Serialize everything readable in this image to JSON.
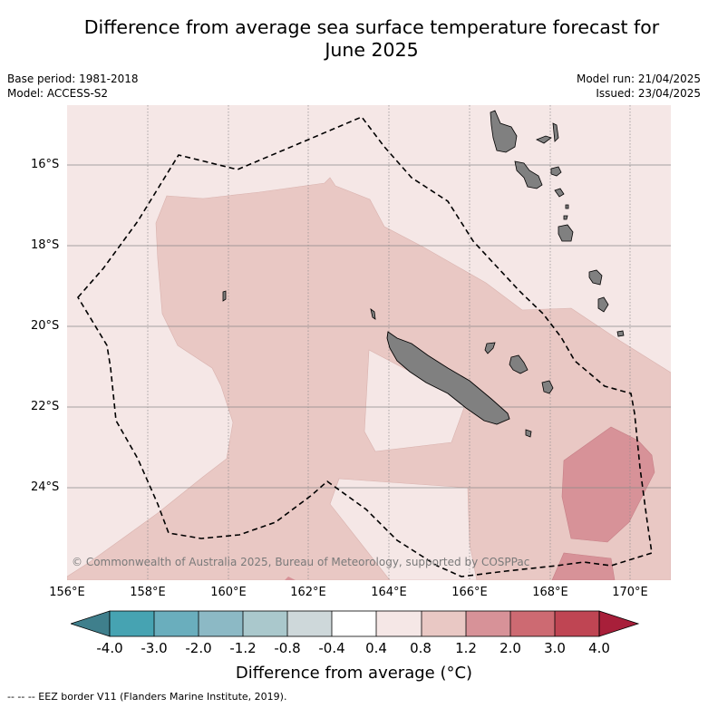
{
  "title": "Difference from average sea surface temperature forecast for June 2025",
  "title_line1": "Difference from average sea surface temperature forecast for",
  "title_line2": "June 2025",
  "meta": {
    "base_period": "Base period: 1981-2018",
    "model": "Model: ACCESS-S2",
    "model_run": "Model run: 21/04/2025",
    "issued": "Issued: 23/04/2025"
  },
  "copyright": "© Commonwealth of Australia 2025, Bureau of Meteorology, supported by COSPPac",
  "axes": {
    "x_ticks": [
      "156°E",
      "158°E",
      "160°E",
      "162°E",
      "164°E",
      "166°E",
      "168°E",
      "170°E"
    ],
    "y_ticks": [
      "16°S",
      "18°S",
      "20°S",
      "22°S",
      "24°S"
    ],
    "lon_range": [
      156,
      171
    ],
    "lat_range": [
      -14.8,
      -26.6
    ],
    "grid": true
  },
  "colorbar": {
    "title": "Difference from average (°C)",
    "labels": [
      "-4.0",
      "-3.0",
      "-2.0",
      "-1.2",
      "-0.8",
      "-0.4",
      "0.4",
      "0.8",
      "1.2",
      "2.0",
      "3.0",
      "4.0"
    ],
    "colors": [
      "#3f7f8c",
      "#46a3b2",
      "#6aaebd",
      "#8cb9c5",
      "#aac8cc",
      "#ced8da",
      "#ffffff",
      "#f5e7e6",
      "#e9c8c4",
      "#d79298",
      "#cd6a72",
      "#bf4553",
      "#a81f3a"
    ]
  },
  "legend": "-- -- -- EEZ border V11 (Flanders Marine Institute, 2019).",
  "chart_data": {
    "type": "heatmap",
    "variable": "Sea surface temperature anomaly",
    "units": "°C",
    "month": "June 2025",
    "region_lon": [
      156,
      171
    ],
    "region_lat": [
      -26.6,
      -14.8
    ],
    "categories": [
      "0.4 to 0.8",
      "0.8 to 1.2",
      "1.2 to 2.0"
    ]
  }
}
